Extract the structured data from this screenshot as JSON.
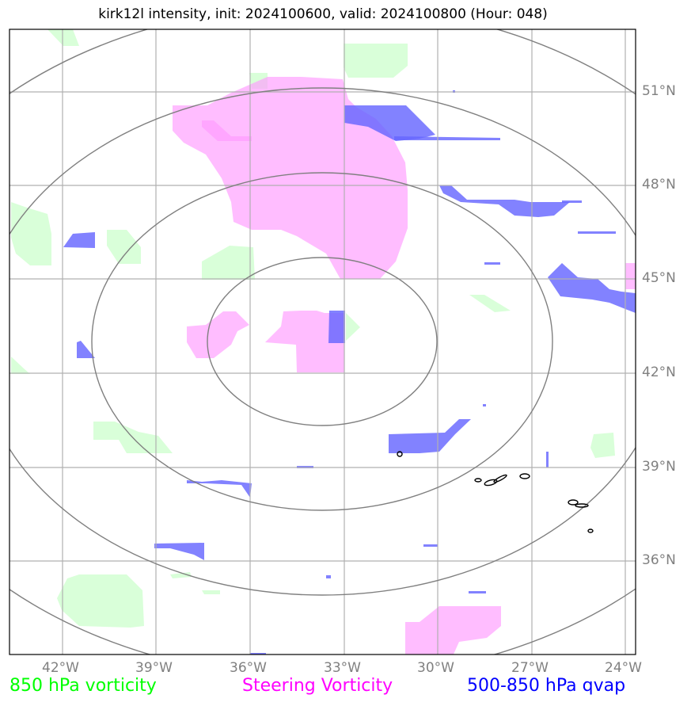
{
  "title": "kirk12l intensity, init: 2024100600, valid: 2024100800 (Hour: 048)",
  "axes": {
    "lat_labels": [
      "51°N",
      "48°N",
      "45°N",
      "42°N",
      "39°N",
      "36°N"
    ],
    "lon_labels": [
      "42°W",
      "39°W",
      "36°W",
      "33°W",
      "30°W",
      "27°W",
      "24°W"
    ]
  },
  "legend": [
    {
      "label": "850 hPa vorticity",
      "color": "#00ff00"
    },
    {
      "label": "Steering Vorticity",
      "color": "#ff00ff"
    },
    {
      "label": "500-850 hPa qvap",
      "color": "#0000ff"
    }
  ],
  "layer_colors": {
    "vorticity_850": "#ccffcc",
    "steering_vorticity": "#ff99ff",
    "qvap": "#6666ff",
    "range_rings": "#808080",
    "gridlines": "#b0b0b0",
    "contours": "#000000"
  }
}
